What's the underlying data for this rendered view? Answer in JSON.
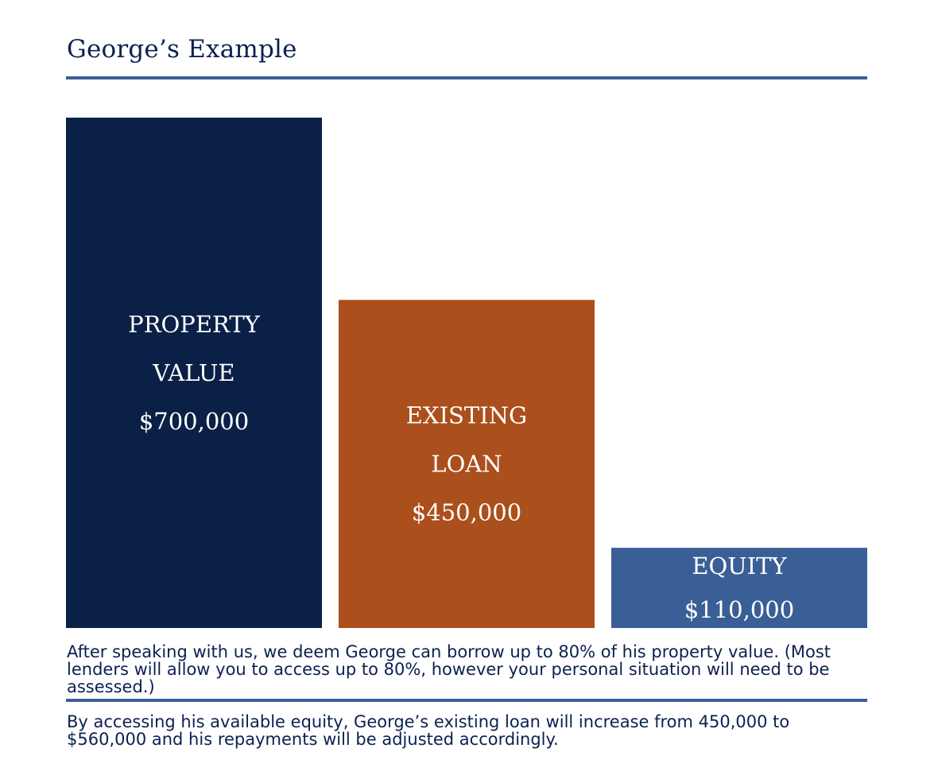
{
  "title": "George’s Example",
  "colors": {
    "navy": "#0b2046",
    "rust": "#ab4f1d",
    "steel": "#3a5f96",
    "text": "#0b2150"
  },
  "chart_data": {
    "type": "bar",
    "categories": [
      "PROPERTY VALUE",
      "EXISTING LOAN",
      "EQUITY"
    ],
    "values": [
      700000,
      450000,
      110000
    ],
    "bars": [
      {
        "lines": [
          "PROPERTY",
          "VALUE",
          "$700,000"
        ],
        "color": "#0b2046"
      },
      {
        "lines": [
          "EXISTING",
          "LOAN",
          "$450,000"
        ],
        "color": "#ab4f1d"
      },
      {
        "lines": [
          "EQUITY",
          "$110,000"
        ],
        "color": "#3a5f96"
      }
    ],
    "title": "",
    "xlabel": "",
    "ylabel": "",
    "grid": false
  },
  "notes": {
    "paragraph1": "After speaking with us, we deem George can borrow up to 80% of his property value. (Most lenders will allow you to access up to 80%, however your personal situation will need to be assessed.)",
    "paragraph2": "By accessing his available equity, George’s existing loan will increase from 450,000 to $560,000 and his repayments will be adjusted accordingly."
  }
}
